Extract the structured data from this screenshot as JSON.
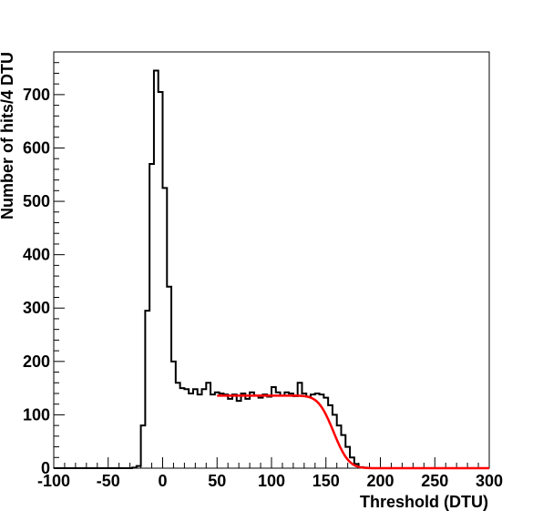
{
  "chart_data": {
    "type": "histogram",
    "xlabel": "Threshold (DTU)",
    "ylabel": "Number of hits/4 DTU",
    "xlim": [
      -100,
      300
    ],
    "ylim": [
      0,
      780
    ],
    "x_ticks": [
      -100,
      -50,
      0,
      50,
      100,
      150,
      200,
      250,
      300
    ],
    "y_ticks": [
      0,
      100,
      200,
      300,
      400,
      500,
      600,
      700
    ],
    "bin_width": 4,
    "bin_low_edges": [
      -100,
      -96,
      -92,
      -88,
      -84,
      -80,
      -76,
      -72,
      -68,
      -64,
      -60,
      -56,
      -52,
      -48,
      -44,
      -40,
      -36,
      -32,
      -28,
      -24,
      -20,
      -16,
      -12,
      -8,
      -4,
      0,
      4,
      8,
      12,
      16,
      20,
      24,
      28,
      32,
      36,
      40,
      44,
      48,
      52,
      56,
      60,
      64,
      68,
      72,
      76,
      80,
      84,
      88,
      92,
      96,
      100,
      104,
      108,
      112,
      116,
      120,
      124,
      128,
      132,
      136,
      140,
      144,
      148,
      152,
      156,
      160,
      164,
      168,
      172,
      176,
      180,
      184,
      188,
      192,
      196,
      200,
      204,
      208,
      212,
      216,
      220,
      224,
      228,
      232,
      236,
      240,
      244,
      248,
      252,
      256,
      260,
      264,
      268,
      272,
      276,
      280,
      284,
      288,
      292,
      296
    ],
    "counts": [
      0,
      0,
      0,
      0,
      0,
      0,
      0,
      0,
      0,
      0,
      0,
      0,
      0,
      0,
      0,
      0,
      0,
      0,
      1,
      4,
      80,
      295,
      570,
      745,
      705,
      525,
      340,
      200,
      160,
      150,
      148,
      140,
      148,
      138,
      148,
      160,
      138,
      142,
      140,
      138,
      130,
      138,
      126,
      140,
      130,
      142,
      136,
      132,
      138,
      134,
      152,
      142,
      136,
      142,
      140,
      135,
      160,
      140,
      134,
      138,
      140,
      138,
      132,
      118,
      100,
      80,
      62,
      40,
      20,
      8,
      2,
      1,
      0,
      0,
      0,
      0,
      0,
      0,
      0,
      0,
      0,
      0,
      0,
      0,
      0,
      0,
      0,
      0,
      0,
      0,
      0,
      0,
      0,
      0,
      0,
      0,
      0,
      0,
      0,
      0
    ],
    "fit": {
      "type": "error-function step",
      "color": "#ff0000",
      "x_range": [
        50,
        300
      ],
      "plateau": 136,
      "midpoint": 157,
      "width": 11
    },
    "grid": false,
    "legend": "none"
  }
}
